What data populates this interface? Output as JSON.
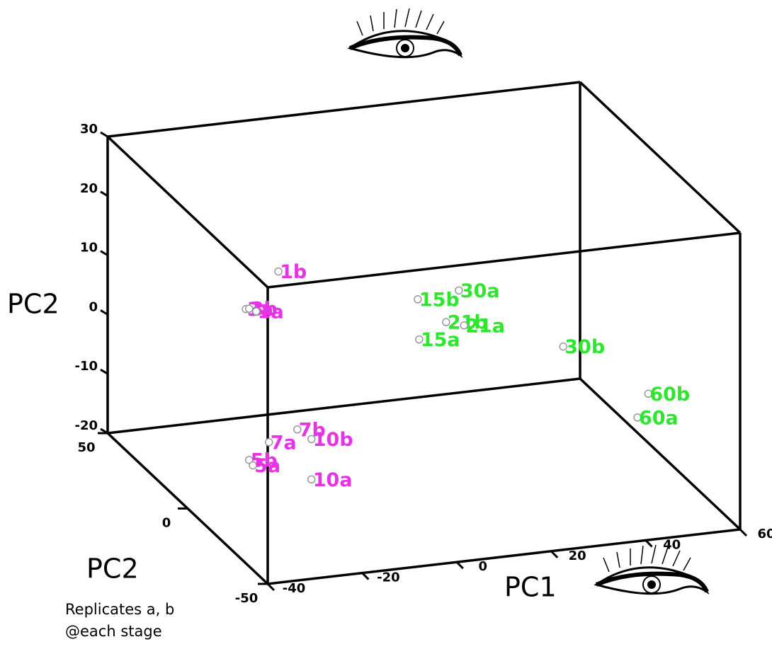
{
  "chart_data": {
    "type": "scatter3d",
    "xlabel": "PC1",
    "ylabel": "PC2",
    "zlabel": "PC2",
    "xlim": [
      -40,
      60
    ],
    "ylim": [
      -20,
      30
    ],
    "zlim": [
      -50,
      50
    ],
    "xticks": [
      -40,
      -20,
      0,
      20,
      40,
      60
    ],
    "yticks": [
      -20,
      -10,
      0,
      10,
      20,
      30
    ],
    "zticks": [
      -50,
      0,
      50
    ],
    "series": [
      {
        "color": "#e633e6",
        "labels": [
          "1b",
          "3a",
          "3b",
          "1a",
          "7b",
          "7a",
          "10b",
          "5b",
          "5a",
          "10a"
        ],
        "x": [
          -20.8,
          -27.7,
          -27.0,
          -25.5,
          -16.8,
          -22.8,
          -13.8,
          -27.0,
          -26.2,
          -13.8
        ],
        "y": [
          18.2,
          12.5,
          12.5,
          11.9,
          -8.8,
          -10.4,
          -10.7,
          -13.0,
          -14.0,
          -17.5
        ],
        "z": [
          0,
          0,
          0,
          0,
          0,
          0,
          0,
          0,
          0,
          0
        ]
      },
      {
        "color": "#2ee62e",
        "labels": [
          "15b",
          "30a",
          "21b",
          "21a",
          "15a",
          "30b",
          "60b",
          "60a"
        ],
        "x": [
          8.7,
          17.4,
          14.7,
          18.5,
          9.0,
          39.5,
          57.5,
          55.2
        ],
        "y": [
          10.8,
          11.5,
          6.4,
          5.5,
          4.0,
          0.0,
          -9.6,
          -13.4
        ],
        "z": [
          0,
          0,
          0,
          0,
          0,
          0,
          0,
          0
        ]
      }
    ],
    "annotation": [
      "Replicates a, b",
      "@each stage"
    ]
  }
}
